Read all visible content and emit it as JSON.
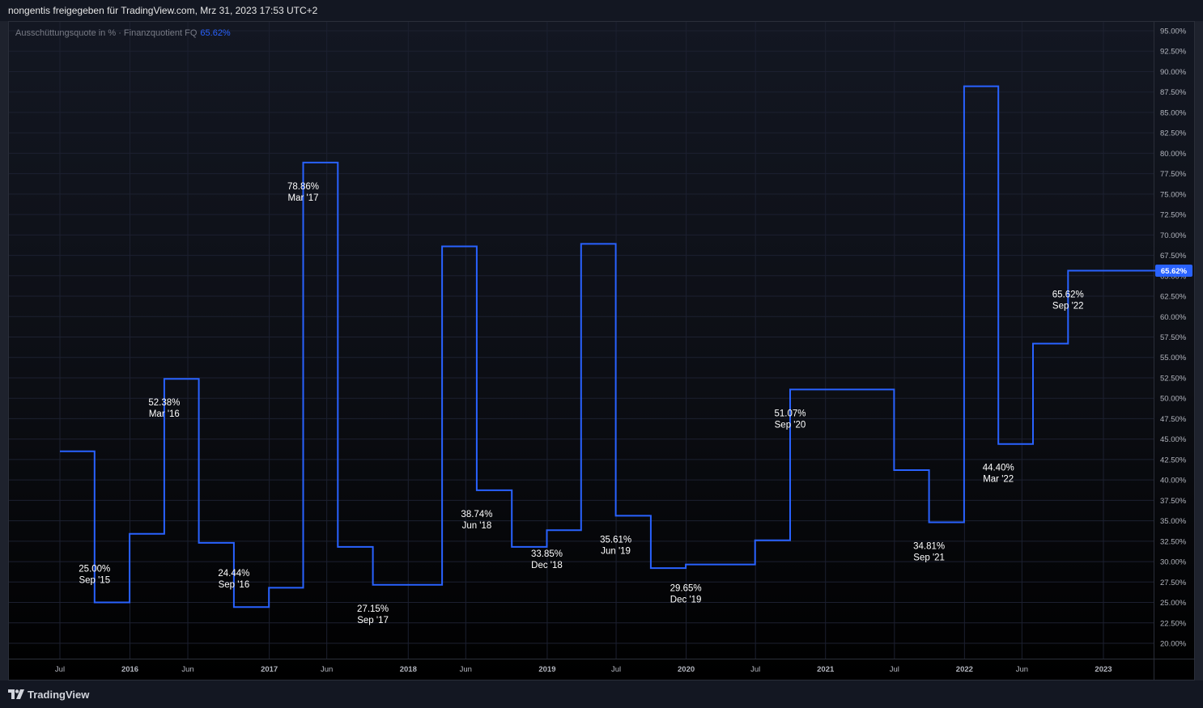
{
  "header": {
    "share_text": "nongentis freigegeben für TradingView.com, Mrz 31, 2023 17:53 UTC+2"
  },
  "legend": {
    "name": "Ausschüttungsquote in % · Finanzquotient FQ",
    "value": "65.62%"
  },
  "footer": {
    "brand": "TradingView",
    "logo_icon": "tradingview-logo-icon"
  },
  "colors": {
    "line": "#2962ff",
    "price_tag_bg": "#2962ff",
    "grid": "#1c2030",
    "axis_text": "#b2b5be",
    "label_text": "#ffffff"
  },
  "chart_data": {
    "type": "line",
    "style": "step",
    "series": [
      {
        "x": [
          "2015-07-01",
          "2015-09-30",
          "2015-12-31",
          "2016-03-31",
          "2016-06-30",
          "2016-09-30",
          "2016-12-31",
          "2017-03-31",
          "2017-06-30",
          "2017-09-30",
          "2017-12-31",
          "2018-03-31",
          "2018-06-30",
          "2018-09-30",
          "2018-12-31",
          "2019-03-31",
          "2019-06-30",
          "2019-09-30",
          "2019-12-31",
          "2020-03-31",
          "2020-06-30",
          "2020-09-30",
          "2020-12-31",
          "2021-03-31",
          "2021-06-30",
          "2021-09-30",
          "2021-12-31",
          "2022-03-31",
          "2022-06-30",
          "2022-09-30",
          "2022-12-31",
          "2023-03-31"
        ],
        "y": [
          43.5,
          25.0,
          33.4,
          52.38,
          32.3,
          24.44,
          26.8,
          78.86,
          31.8,
          27.15,
          27.15,
          68.6,
          38.74,
          31.8,
          33.85,
          68.9,
          35.61,
          29.2,
          29.65,
          29.65,
          32.6,
          51.07,
          51.07,
          51.07,
          41.2,
          34.81,
          88.2,
          44.4,
          56.7,
          65.62,
          65.62,
          65.62
        ]
      }
    ],
    "x_end": "2023-05-25",
    "annotations": [
      {
        "value": "25.00%",
        "date": "Sep '15",
        "x": "2015-09-30",
        "y": 25.0,
        "pos": "above"
      },
      {
        "value": "52.38%",
        "date": "Mar '16",
        "x": "2016-03-31",
        "y": 52.38,
        "pos": "below"
      },
      {
        "value": "24.44%",
        "date": "Sep '16",
        "x": "2016-09-30",
        "y": 24.44,
        "pos": "above"
      },
      {
        "value": "78.86%",
        "date": "Mar '17",
        "x": "2017-03-31",
        "y": 78.86,
        "pos": "below"
      },
      {
        "value": "27.15%",
        "date": "Sep '17",
        "x": "2017-09-30",
        "y": 27.15,
        "pos": "below"
      },
      {
        "value": "38.74%",
        "date": "Jun '18",
        "x": "2018-06-30",
        "y": 38.74,
        "pos": "below"
      },
      {
        "value": "33.85%",
        "date": "Dec '18",
        "x": "2018-12-31",
        "y": 33.85,
        "pos": "below"
      },
      {
        "value": "35.61%",
        "date": "Jun '19",
        "x": "2019-06-30",
        "y": 35.61,
        "pos": "below"
      },
      {
        "value": "29.65%",
        "date": "Dec '19",
        "x": "2019-12-31",
        "y": 29.65,
        "pos": "below"
      },
      {
        "value": "51.07%",
        "date": "Sep '20",
        "x": "2020-09-30",
        "y": 51.07,
        "pos": "below"
      },
      {
        "value": "34.81%",
        "date": "Sep '21",
        "x": "2021-09-30",
        "y": 34.81,
        "pos": "below"
      },
      {
        "value": "44.40%",
        "date": "Mar '22",
        "x": "2022-03-31",
        "y": 44.4,
        "pos": "below"
      },
      {
        "value": "65.62%",
        "date": "Sep '22",
        "x": "2022-09-30",
        "y": 65.62,
        "pos": "below"
      }
    ],
    "x_ticks": [
      {
        "label": "Jul",
        "x": "2015-07-01"
      },
      {
        "label": "2016",
        "x": "2016-01-01",
        "bold": true
      },
      {
        "label": "Jun",
        "x": "2016-06-01"
      },
      {
        "label": "2017",
        "x": "2017-01-01",
        "bold": true
      },
      {
        "label": "Jun",
        "x": "2017-06-01"
      },
      {
        "label": "2018",
        "x": "2018-01-01",
        "bold": true
      },
      {
        "label": "Jun",
        "x": "2018-06-01"
      },
      {
        "label": "2019",
        "x": "2019-01-01",
        "bold": true
      },
      {
        "label": "Jul",
        "x": "2019-07-01"
      },
      {
        "label": "2020",
        "x": "2020-01-01",
        "bold": true
      },
      {
        "label": "Jul",
        "x": "2020-07-01"
      },
      {
        "label": "2021",
        "x": "2021-01-01",
        "bold": true
      },
      {
        "label": "Jul",
        "x": "2021-07-01"
      },
      {
        "label": "2022",
        "x": "2022-01-01",
        "bold": true
      },
      {
        "label": "Jun",
        "x": "2022-06-01"
      },
      {
        "label": "2023",
        "x": "2023-01-01",
        "bold": true
      }
    ],
    "y_ticks": [
      95,
      92.5,
      90,
      87.5,
      85,
      82.5,
      80,
      77.5,
      75,
      72.5,
      70,
      67.5,
      65,
      62.5,
      60,
      57.5,
      55,
      52.5,
      50,
      47.5,
      45,
      42.5,
      40,
      37.5,
      35,
      32.5,
      30,
      27.5,
      25,
      22.5,
      20
    ],
    "y_unit": "%",
    "ylim": [
      17.5,
      97.5
    ],
    "last_value_label": "65.62%",
    "last_value": 65.62,
    "grid": true
  }
}
